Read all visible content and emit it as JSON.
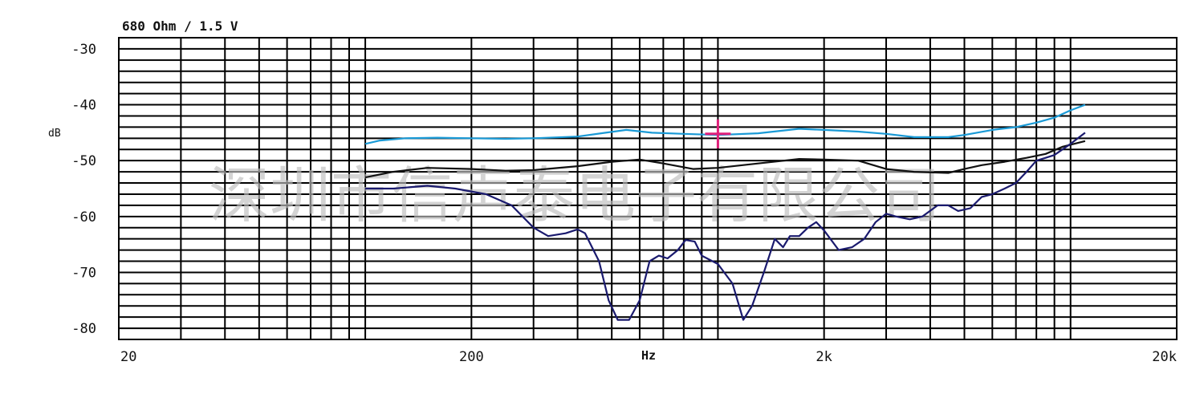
{
  "chart_data": {
    "type": "line",
    "title": "680 Ohm / 1.5 V",
    "ylabel": "dB",
    "xlabel": "Hz",
    "xscale": "log",
    "xlim": [
      20,
      20000
    ],
    "ylim": [
      -82,
      -28
    ],
    "grid": true,
    "xticks": [
      {
        "value": 20,
        "label": "20"
      },
      {
        "value": 200,
        "label": "200"
      },
      {
        "value": 2000,
        "label": "2k"
      },
      {
        "value": 20000,
        "label": "20k"
      }
    ],
    "yticks": [
      {
        "value": -30,
        "label": "-30"
      },
      {
        "value": -40,
        "label": "-40"
      },
      {
        "value": -50,
        "label": "-50"
      },
      {
        "value": -60,
        "label": "-60"
      },
      {
        "value": -70,
        "label": "-70"
      },
      {
        "value": -80,
        "label": "-80"
      }
    ],
    "watermark": "深圳市信声泰电子有限公司",
    "marker": {
      "x": 1000,
      "y": -45.2,
      "color": "#e0207a"
    },
    "series": [
      {
        "color": "#1a9ad6",
        "points": [
          [
            100,
            -47
          ],
          [
            110,
            -46.4
          ],
          [
            130,
            -46
          ],
          [
            160,
            -45.9
          ],
          [
            200,
            -46
          ],
          [
            250,
            -46.1
          ],
          [
            300,
            -46
          ],
          [
            400,
            -45.7
          ],
          [
            480,
            -45
          ],
          [
            550,
            -44.5
          ],
          [
            650,
            -45
          ],
          [
            800,
            -45.2
          ],
          [
            1000,
            -45.4
          ],
          [
            1300,
            -45.1
          ],
          [
            1700,
            -44.3
          ],
          [
            2000,
            -44.5
          ],
          [
            2500,
            -44.8
          ],
          [
            3000,
            -45.2
          ],
          [
            3600,
            -45.8
          ],
          [
            4500,
            -45.8
          ],
          [
            5000,
            -45.4
          ],
          [
            6000,
            -44.5
          ],
          [
            7000,
            -44
          ],
          [
            8000,
            -43.2
          ],
          [
            9000,
            -42.3
          ],
          [
            10000,
            -41
          ],
          [
            11000,
            -40
          ]
        ]
      },
      {
        "color": "#111111",
        "points": [
          [
            100,
            -53
          ],
          [
            120,
            -52
          ],
          [
            150,
            -51.3
          ],
          [
            200,
            -51.5
          ],
          [
            250,
            -51.8
          ],
          [
            300,
            -51.7
          ],
          [
            400,
            -51
          ],
          [
            500,
            -50.2
          ],
          [
            600,
            -49.8
          ],
          [
            700,
            -50.5
          ],
          [
            850,
            -51.5
          ],
          [
            1000,
            -51.3
          ],
          [
            1300,
            -50.5
          ],
          [
            1700,
            -49.7
          ],
          [
            2000,
            -49.8
          ],
          [
            2500,
            -50
          ],
          [
            3000,
            -51.5
          ],
          [
            3600,
            -52
          ],
          [
            4500,
            -52.2
          ],
          [
            5000,
            -51.5
          ],
          [
            5600,
            -50.8
          ],
          [
            6500,
            -50.2
          ],
          [
            7500,
            -49.5
          ],
          [
            8500,
            -48.8
          ],
          [
            9500,
            -47.5
          ],
          [
            11000,
            -46.5
          ]
        ]
      },
      {
        "color": "#1a1a6e",
        "points": [
          [
            100,
            -55
          ],
          [
            120,
            -55
          ],
          [
            150,
            -54.5
          ],
          [
            180,
            -55
          ],
          [
            220,
            -56
          ],
          [
            260,
            -58
          ],
          [
            300,
            -62
          ],
          [
            330,
            -63.5
          ],
          [
            370,
            -63
          ],
          [
            400,
            -62.3
          ],
          [
            420,
            -63
          ],
          [
            460,
            -68
          ],
          [
            490,
            -75
          ],
          [
            520,
            -78.5
          ],
          [
            560,
            -78.5
          ],
          [
            600,
            -75
          ],
          [
            640,
            -68
          ],
          [
            680,
            -67
          ],
          [
            720,
            -67.5
          ],
          [
            770,
            -66
          ],
          [
            810,
            -64.2
          ],
          [
            860,
            -64.5
          ],
          [
            900,
            -67
          ],
          [
            1000,
            -68.5
          ],
          [
            1100,
            -72
          ],
          [
            1180,
            -78.5
          ],
          [
            1250,
            -76
          ],
          [
            1350,
            -70
          ],
          [
            1450,
            -64
          ],
          [
            1530,
            -65.5
          ],
          [
            1600,
            -63.5
          ],
          [
            1700,
            -63.5
          ],
          [
            1800,
            -62
          ],
          [
            1900,
            -61
          ],
          [
            2000,
            -62.5
          ],
          [
            2200,
            -66
          ],
          [
            2400,
            -65.5
          ],
          [
            2600,
            -64
          ],
          [
            2800,
            -61
          ],
          [
            3000,
            -59.5
          ],
          [
            3200,
            -60
          ],
          [
            3500,
            -60.5
          ],
          [
            3800,
            -60
          ],
          [
            4200,
            -58
          ],
          [
            4500,
            -58
          ],
          [
            4800,
            -59
          ],
          [
            5200,
            -58.5
          ],
          [
            5600,
            -56.5
          ],
          [
            6000,
            -56
          ],
          [
            6500,
            -55
          ],
          [
            7000,
            -54
          ],
          [
            7500,
            -52
          ],
          [
            8000,
            -50
          ],
          [
            8500,
            -49.5
          ],
          [
            9000,
            -49
          ],
          [
            10000,
            -47
          ],
          [
            11000,
            -45
          ]
        ]
      }
    ]
  }
}
